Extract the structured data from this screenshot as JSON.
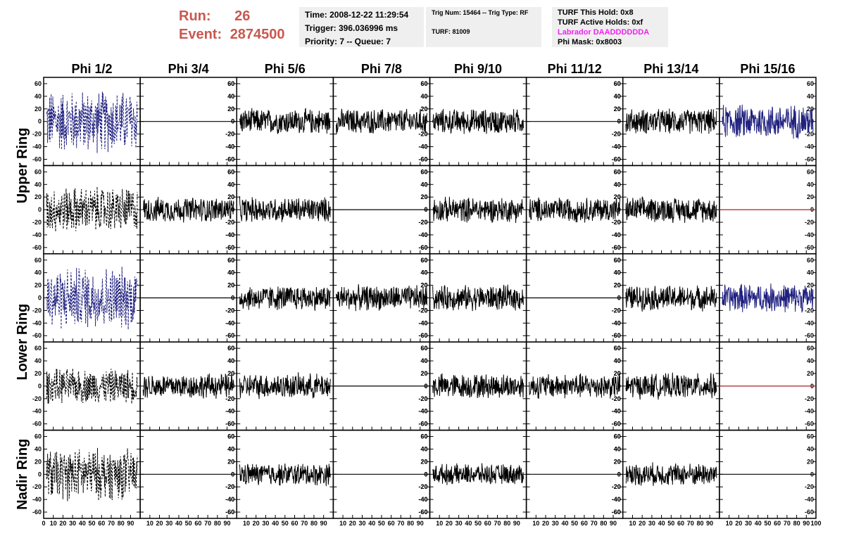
{
  "header": {
    "run_label": "Run:",
    "run_value": "26",
    "event_label": "Event:",
    "event_value": "2874500"
  },
  "info": {
    "time": "Time: 2008-12-22 11:29:54",
    "trigger": "Trigger: 396.036996 ms",
    "priority": "Priority: 7 -- Queue: 7",
    "trig_num": "Trig Num: 15464 -- Trig Type: RF",
    "turf": "TURF: 81009",
    "turf_hold": "TURF This Hold: 0x8",
    "turf_active": "TURF Active Holds: 0xf",
    "labrador": "Labrador DAADDDDDDA",
    "phi_mask": "Phi Mask: 0x8003"
  },
  "chart_data": {
    "type": "line",
    "title": "",
    "columns": [
      "Phi 1/2",
      "Phi 3/4",
      "Phi 5/6",
      "Phi 7/8",
      "Phi 9/10",
      "Phi 11/12",
      "Phi 13/14",
      "Phi 15/16"
    ],
    "ring_groups": [
      {
        "label": "Upper Ring",
        "rows": [
          0,
          1
        ]
      },
      {
        "label": "Lower Ring",
        "rows": [
          2,
          3
        ]
      },
      {
        "label": "Nadir Ring",
        "rows": [
          4
        ]
      }
    ],
    "xlim": [
      0,
      100
    ],
    "ylim": [
      -70,
      70
    ],
    "ytick_labels": [
      "-60",
      "-40",
      "-20",
      "0",
      "20",
      "40",
      "60"
    ],
    "xtick_labels": [
      "10",
      "20",
      "30",
      "40",
      "50",
      "60",
      "70",
      "80",
      "90",
      "100"
    ],
    "first_x_label": "0",
    "last_x_label": "100",
    "colors": {
      "solid": "#000000",
      "dashed": "#000000",
      "blue": "#202080",
      "red": "#aa2222",
      "flat": "#000000"
    },
    "panels": [
      [
        "blue-dashed",
        "flat",
        "noise",
        "noise",
        "noise",
        "flat",
        "noise",
        "blue"
      ],
      [
        "dashed",
        "noise",
        "noise",
        "flat",
        "noise",
        "noise",
        "noise",
        "red-flat"
      ],
      [
        "blue-dashed",
        "flat",
        "noise",
        "noise",
        "noise",
        "flat",
        "noise",
        "blue"
      ],
      [
        "dashed",
        "noise",
        "noise",
        "flat",
        "noise",
        "noise",
        "noise",
        "red-flat"
      ],
      [
        "dashed",
        "flat",
        "noise",
        "flat",
        "noise",
        "flat",
        "noise",
        "flat"
      ]
    ],
    "amplitudes": [
      [
        55,
        0,
        22,
        22,
        22,
        0,
        22,
        30
      ],
      [
        40,
        22,
        22,
        0,
        22,
        22,
        22,
        0
      ],
      [
        55,
        0,
        22,
        22,
        22,
        0,
        22,
        25
      ],
      [
        30,
        22,
        22,
        0,
        22,
        22,
        22,
        0
      ],
      [
        45,
        0,
        20,
        0,
        18,
        0,
        20,
        0
      ]
    ]
  }
}
